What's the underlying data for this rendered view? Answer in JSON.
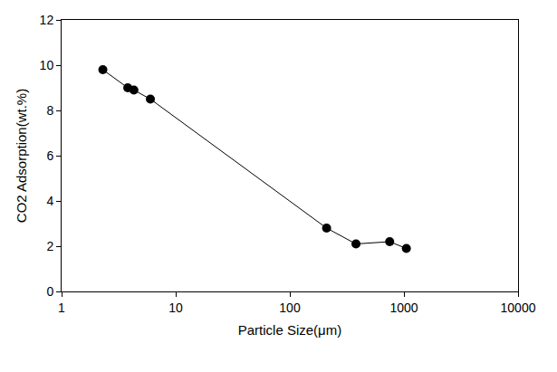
{
  "chart_data": {
    "type": "line",
    "x_label": "Particle Size(μm)",
    "y_label": "CO2 Adsorption(wt.%)",
    "x": [
      2.3,
      3.8,
      4.3,
      6,
      210,
      380,
      750,
      1050
    ],
    "values": [
      9.8,
      9.0,
      8.9,
      8.5,
      2.8,
      2.1,
      2.2,
      1.9
    ],
    "color": "#000000",
    "marker": "circle",
    "line_style": "solid",
    "log": "x",
    "xlim": [
      1,
      10000
    ],
    "xticks": [
      1,
      10,
      100,
      1000,
      10000
    ],
    "ylim": [
      0,
      12
    ],
    "yticks": [
      0,
      2,
      4,
      6,
      8,
      10,
      12
    ],
    "grid": false
  }
}
